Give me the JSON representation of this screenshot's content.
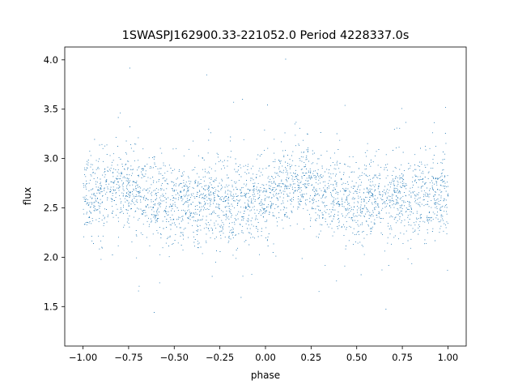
{
  "chart_data": {
    "type": "scatter",
    "title": "1SWASPJ162900.33-221052.0 Period 4228337.0s",
    "xlabel": "phase",
    "ylabel": "flux",
    "xlim": [
      -1.1,
      1.1
    ],
    "ylim": [
      1.1,
      4.13
    ],
    "x_ticks": [
      {
        "value": -1.0,
        "label": "−1.00"
      },
      {
        "value": -0.75,
        "label": "−0.75"
      },
      {
        "value": -0.5,
        "label": "−0.50"
      },
      {
        "value": -0.25,
        "label": "−0.25"
      },
      {
        "value": 0.0,
        "label": "0.00"
      },
      {
        "value": 0.25,
        "label": "0.25"
      },
      {
        "value": 0.5,
        "label": "0.50"
      },
      {
        "value": 0.75,
        "label": "0.75"
      },
      {
        "value": 1.0,
        "label": "1.00"
      }
    ],
    "y_ticks": [
      {
        "value": 1.5,
        "label": "1.5"
      },
      {
        "value": 2.0,
        "label": "2.0"
      },
      {
        "value": 2.5,
        "label": "2.5"
      },
      {
        "value": 3.0,
        "label": "3.0"
      },
      {
        "value": 3.5,
        "label": "3.5"
      },
      {
        "value": 4.0,
        "label": "4.0"
      }
    ],
    "grid": false,
    "legend": "none",
    "marker_color": "#1f77b4",
    "series": [
      {
        "phase_range": [
          -1.0,
          1.0
        ],
        "point_count": 16000,
        "profile_x": [
          -1.0,
          -0.9,
          -0.8,
          -0.75,
          -0.7,
          -0.6,
          -0.5,
          -0.4,
          -0.3,
          -0.2,
          -0.1,
          0.0,
          0.1,
          0.2,
          0.25,
          0.3,
          0.4,
          0.5,
          0.6,
          0.7,
          0.8,
          0.9,
          1.0
        ],
        "profile_median_flux": [
          2.6,
          2.6,
          2.75,
          2.7,
          2.65,
          2.6,
          2.55,
          2.55,
          2.55,
          2.55,
          2.55,
          2.6,
          2.7,
          2.78,
          2.72,
          2.65,
          2.6,
          2.55,
          2.58,
          2.6,
          2.6,
          2.6,
          2.6
        ],
        "core_flux_range": [
          2.2,
          3.0
        ],
        "outlier_flux_range": [
          1.25,
          4.05
        ]
      }
    ]
  }
}
